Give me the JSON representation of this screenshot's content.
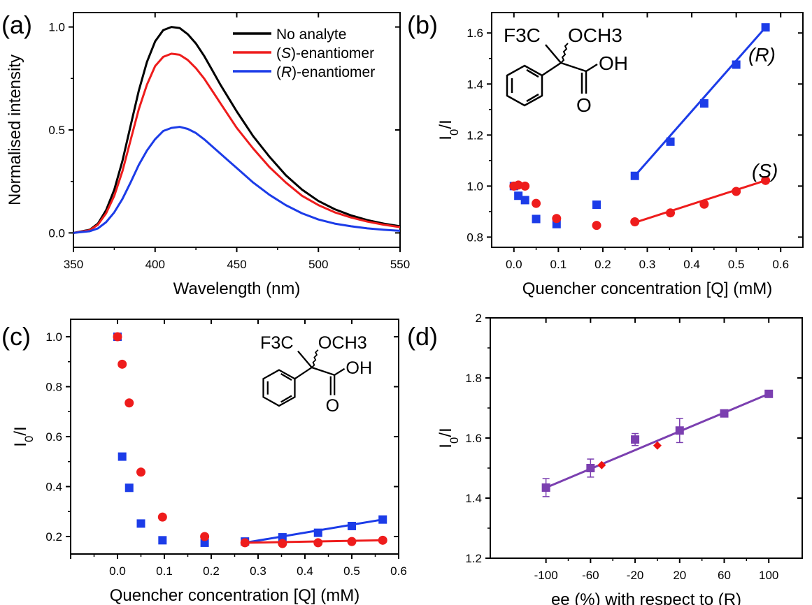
{
  "colors": {
    "black": "#000000",
    "red": "#ee1c1c",
    "blue": "#1c3ce8",
    "purple": "#7b3fb0",
    "diamond": "#ee1010"
  },
  "panels": {
    "a": {
      "letter": "(a)"
    },
    "b": {
      "letter": "(b)",
      "label_R": "(R)",
      "label_S": "(S)"
    },
    "c": {
      "letter": "(c)"
    },
    "d": {
      "letter": "(d)"
    }
  },
  "chemical_structure": {
    "F3C": "F3C",
    "OCH3": "OCH3",
    "OH": "OH",
    "O": "O"
  },
  "chart_data": [
    {
      "id": "a",
      "type": "line",
      "xlabel": "Wavelength (nm)",
      "ylabel": "Normalised intensity",
      "xlim": [
        350,
        550
      ],
      "ylim": [
        -0.07,
        1.07
      ],
      "xticks": [
        350,
        400,
        450,
        500,
        550
      ],
      "yticks": [
        0.0,
        0.5,
        1.0
      ],
      "ytick_labels": [
        "0.0",
        "0.5",
        "1.0"
      ],
      "legend_position": "top-right",
      "series": [
        {
          "name": "No analyte",
          "color": "#000000",
          "x": [
            350,
            360,
            365,
            370,
            375,
            380,
            385,
            390,
            395,
            400,
            405,
            410,
            415,
            420,
            425,
            430,
            435,
            440,
            445,
            450,
            460,
            470,
            480,
            490,
            500,
            510,
            520,
            530,
            540,
            550
          ],
          "y": [
            0.0,
            0.015,
            0.045,
            0.11,
            0.21,
            0.35,
            0.52,
            0.69,
            0.83,
            0.93,
            0.985,
            1.0,
            0.995,
            0.965,
            0.92,
            0.86,
            0.79,
            0.72,
            0.655,
            0.59,
            0.47,
            0.37,
            0.28,
            0.21,
            0.155,
            0.115,
            0.085,
            0.062,
            0.045,
            0.032
          ]
        },
        {
          "name": "(S)-enantiomer",
          "color": "#ee1c1c",
          "x": [
            350,
            360,
            365,
            370,
            375,
            380,
            385,
            390,
            395,
            400,
            405,
            410,
            415,
            420,
            425,
            430,
            435,
            440,
            445,
            450,
            460,
            470,
            480,
            490,
            500,
            510,
            520,
            530,
            540,
            550
          ],
          "y": [
            0.0,
            0.013,
            0.04,
            0.095,
            0.18,
            0.3,
            0.45,
            0.6,
            0.72,
            0.81,
            0.855,
            0.87,
            0.865,
            0.84,
            0.8,
            0.75,
            0.69,
            0.63,
            0.57,
            0.51,
            0.41,
            0.32,
            0.245,
            0.18,
            0.135,
            0.1,
            0.075,
            0.055,
            0.04,
            0.028
          ]
        },
        {
          "name": "(R)-enantiomer",
          "color": "#1c3ce8",
          "x": [
            350,
            360,
            365,
            370,
            375,
            380,
            385,
            390,
            395,
            400,
            405,
            410,
            415,
            420,
            425,
            430,
            435,
            440,
            445,
            450,
            460,
            470,
            480,
            490,
            500,
            510,
            520,
            530,
            540,
            550
          ],
          "y": [
            0.0,
            0.008,
            0.022,
            0.052,
            0.1,
            0.165,
            0.245,
            0.33,
            0.4,
            0.455,
            0.495,
            0.51,
            0.515,
            0.505,
            0.485,
            0.455,
            0.42,
            0.385,
            0.35,
            0.315,
            0.245,
            0.185,
            0.135,
            0.095,
            0.065,
            0.045,
            0.032,
            0.022,
            0.015,
            0.01
          ]
        }
      ]
    },
    {
      "id": "b",
      "type": "scatter",
      "xlabel": "Quencher concentration [Q] (mM)",
      "ylabel": "I0/I",
      "xlim": [
        -0.05,
        0.65
      ],
      "ylim": [
        0.76,
        1.68
      ],
      "xticks": [
        0.0,
        0.1,
        0.2,
        0.3,
        0.4,
        0.5,
        0.6
      ],
      "xtick_labels": [
        "0.0",
        "0.1",
        "0.2",
        "0.3",
        "0.4",
        "0.5",
        "0.6"
      ],
      "yticks": [
        0.8,
        1.0,
        1.2,
        1.4,
        1.6
      ],
      "ytick_labels": [
        "0.8",
        "1.0",
        "1.2",
        "1.4",
        "1.6"
      ],
      "series": [
        {
          "marker": "square",
          "color": "#1c3ce8",
          "x": [
            0.0,
            0.01,
            0.025,
            0.05,
            0.096,
            0.186,
            0.272,
            0.352,
            0.428,
            0.5,
            0.566
          ],
          "y": [
            1.0,
            0.962,
            0.945,
            0.871,
            0.851,
            0.927,
            1.04,
            1.174,
            1.324,
            1.476,
            1.622
          ],
          "fit": [
            [
              0.272,
              1.04
            ],
            [
              0.566,
              1.622
            ]
          ]
        },
        {
          "marker": "circle",
          "color": "#ee1c1c",
          "x": [
            0.0,
            0.01,
            0.025,
            0.05,
            0.096,
            0.186,
            0.272,
            0.352,
            0.428,
            0.5,
            0.566
          ],
          "y": [
            1.0,
            1.004,
            1.0,
            0.932,
            0.873,
            0.846,
            0.86,
            0.895,
            0.929,
            0.979,
            1.022
          ],
          "fit": [
            [
              0.272,
              0.857
            ],
            [
              0.566,
              1.022
            ]
          ]
        }
      ]
    },
    {
      "id": "c",
      "type": "scatter",
      "xlabel": "Quencher concentration [Q] (mM)",
      "ylabel": "I0/I",
      "xlim": [
        -0.1,
        0.6
      ],
      "ylim": [
        0.13,
        1.07
      ],
      "xticks": [
        -0.1,
        0.0,
        0.1,
        0.2,
        0.3,
        0.4,
        0.5,
        0.6
      ],
      "xtick_labels": [
        "",
        "0.0",
        "0.1",
        "0.2",
        "0.3",
        "0.4",
        "0.5",
        "0.6"
      ],
      "yticks": [
        0.2,
        0.4,
        0.6,
        0.8,
        1.0
      ],
      "ytick_labels": [
        "0.2",
        "0.4",
        "0.6",
        "0.8",
        "1.0"
      ],
      "series": [
        {
          "marker": "square",
          "color": "#1c3ce8",
          "x": [
            0.0,
            0.01,
            0.025,
            0.05,
            0.096,
            0.186,
            0.272,
            0.352,
            0.428,
            0.5,
            0.566
          ],
          "y": [
            1.0,
            0.52,
            0.395,
            0.252,
            0.185,
            0.175,
            0.18,
            0.197,
            0.215,
            0.242,
            0.268
          ],
          "fit": [
            [
              0.272,
              0.175
            ],
            [
              0.566,
              0.268
            ]
          ]
        },
        {
          "marker": "circle",
          "color": "#ee1c1c",
          "x": [
            0.0,
            0.01,
            0.025,
            0.05,
            0.096,
            0.186,
            0.272,
            0.352,
            0.428,
            0.5,
            0.566
          ],
          "y": [
            1.0,
            0.89,
            0.735,
            0.458,
            0.278,
            0.2,
            0.175,
            0.172,
            0.175,
            0.18,
            0.185
          ],
          "fit": [
            [
              0.272,
              0.175
            ],
            [
              0.566,
              0.185
            ]
          ]
        }
      ]
    },
    {
      "id": "d",
      "type": "scatter",
      "xlabel": "ee (%) with respect to (R)",
      "ylabel": "I0/I",
      "xlim": [
        -150,
        130
      ],
      "ylim": [
        1.2,
        2.0
      ],
      "xticks": [
        -100,
        -60,
        -20,
        20,
        60,
        100
      ],
      "xtick_labels": [
        "-100",
        "-60",
        "-20",
        "20",
        "60",
        "100"
      ],
      "yticks": [
        1.2,
        1.4,
        1.6,
        1.8,
        2.0
      ],
      "ytick_labels": [
        "1.2",
        "1.4",
        "1.6",
        "1.8",
        "2"
      ],
      "series": [
        {
          "marker": "square",
          "color": "#7b3fb0",
          "x": [
            -100,
            -60,
            -20,
            20,
            60,
            100
          ],
          "y": [
            1.435,
            1.5,
            1.595,
            1.625,
            1.682,
            1.747
          ],
          "err": [
            0.03,
            0.03,
            0.02,
            0.04,
            0.008,
            0.008
          ],
          "fit": [
            [
              -100,
              1.435
            ],
            [
              100,
              1.747
            ]
          ]
        },
        {
          "marker": "diamond",
          "color": "#ee1010",
          "x": [
            -50,
            0
          ],
          "y": [
            1.51,
            1.575
          ]
        }
      ]
    }
  ]
}
